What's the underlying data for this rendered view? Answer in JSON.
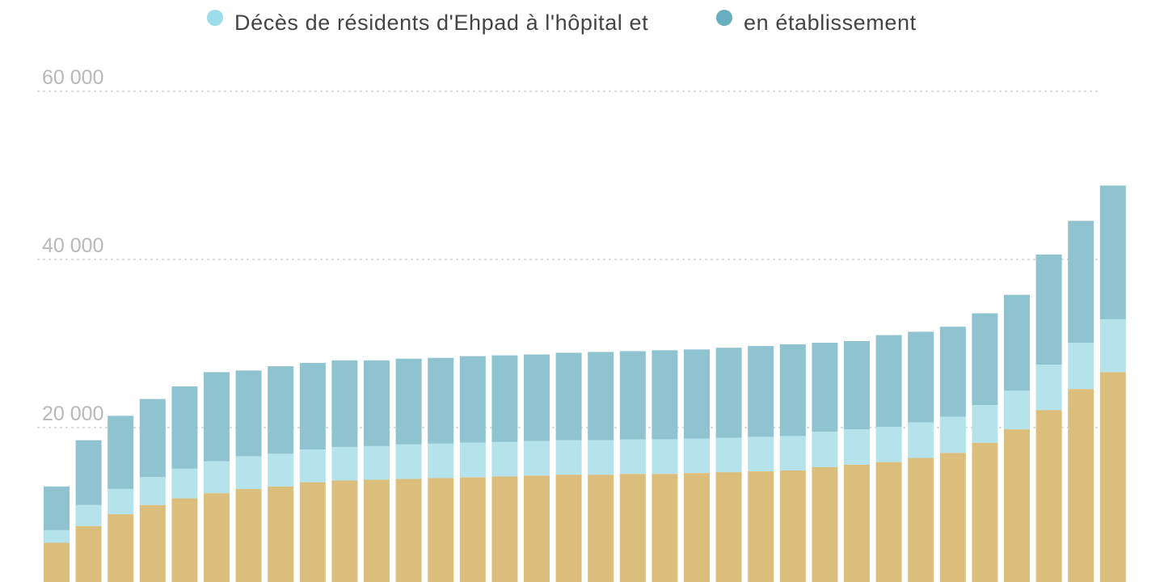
{
  "legend": {
    "items": [
      {
        "label": "Décès de résidents d'Ehpad à l'hôpital et",
        "color": "#9ddcea"
      },
      {
        "label": "en établissement",
        "color": "#6aafc0"
      }
    ]
  },
  "chart_data": {
    "type": "bar",
    "stacked": true,
    "title": "",
    "xlabel": "",
    "ylabel": "",
    "yticks": [
      "20 000",
      "40 000",
      "60 000"
    ],
    "ytick_values": [
      20000,
      40000,
      60000
    ],
    "grid": true,
    "legend_position": "top",
    "series": [
      {
        "color": "#dbbd7c",
        "values": [
          6300,
          8300,
          9700,
          10800,
          11600,
          12200,
          12700,
          13000,
          13500,
          13700,
          13800,
          13900,
          14000,
          14100,
          14200,
          14300,
          14400,
          14400,
          14500,
          14500,
          14600,
          14700,
          14800,
          14900,
          15300,
          15600,
          15900,
          16400,
          17000,
          18200,
          19800,
          22100,
          24600,
          26600
        ]
      },
      {
        "name": "Décès de résidents d'Ehpad à l'hôpital et",
        "color": "#b4e3ec",
        "values": [
          1500,
          2500,
          3000,
          3300,
          3500,
          3800,
          3900,
          3900,
          3900,
          4000,
          4000,
          4100,
          4100,
          4100,
          4100,
          4100,
          4100,
          4100,
          4100,
          4100,
          4100,
          4100,
          4100,
          4100,
          4200,
          4200,
          4200,
          4200,
          4300,
          4500,
          4600,
          5400,
          5500,
          6300
        ]
      },
      {
        "name": "en établissement",
        "color": "#8fc3cf",
        "values": [
          5200,
          7700,
          8700,
          9300,
          9800,
          10600,
          10200,
          10400,
          10300,
          10300,
          10200,
          10200,
          10200,
          10300,
          10300,
          10300,
          10400,
          10500,
          10500,
          10600,
          10600,
          10700,
          10800,
          10900,
          10600,
          10500,
          10900,
          10800,
          10700,
          10900,
          11400,
          13100,
          14500,
          15900
        ]
      }
    ]
  }
}
